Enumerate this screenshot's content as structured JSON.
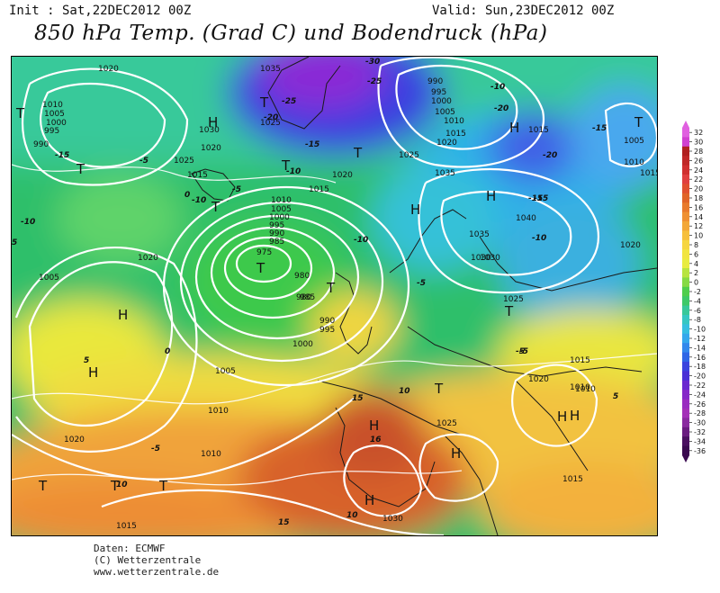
{
  "header": {
    "init": "Init : Sat,22DEC2012 00Z",
    "valid": "Valid: Sun,23DEC2012 00Z",
    "title": "850 hPa Temp. (Grad C) und Bodendruck (hPa)"
  },
  "footer": {
    "line1": "Daten: ECMWF",
    "line2": "(C) Wetterzentrale",
    "line3": "www.wetterzentrale.de"
  },
  "legend": {
    "ticks": [
      "32",
      "30",
      "28",
      "26",
      "24",
      "22",
      "20",
      "18",
      "16",
      "14",
      "12",
      "10",
      "8",
      "6",
      "4",
      "2",
      "0",
      "-2",
      "-4",
      "-6",
      "-8",
      "-10",
      "-12",
      "-14",
      "-16",
      "-18",
      "-20",
      "-22",
      "-24",
      "-26",
      "-28",
      "-30",
      "-32",
      "-34",
      "-36"
    ]
  },
  "pressure_centers": [
    {
      "type": "H",
      "label": "H"
    },
    {
      "type": "H",
      "label": "H"
    },
    {
      "type": "H",
      "label": "H"
    },
    {
      "type": "H",
      "label": "H"
    },
    {
      "type": "H",
      "label": "H"
    },
    {
      "type": "H",
      "label": "H"
    },
    {
      "type": "H",
      "label": "H"
    },
    {
      "type": "H",
      "label": "H"
    },
    {
      "type": "H",
      "label": "H"
    },
    {
      "type": "H",
      "label": "H"
    },
    {
      "type": "H",
      "label": "H"
    },
    {
      "type": "T",
      "label": "T"
    },
    {
      "type": "T",
      "label": "T"
    },
    {
      "type": "T",
      "label": "T"
    },
    {
      "type": "T",
      "label": "T"
    },
    {
      "type": "T",
      "label": "T"
    },
    {
      "type": "T",
      "label": "T"
    },
    {
      "type": "T",
      "label": "T"
    },
    {
      "type": "T",
      "label": "T"
    },
    {
      "type": "T",
      "label": "T"
    },
    {
      "type": "T",
      "label": "T"
    },
    {
      "type": "T",
      "label": "T"
    },
    {
      "type": "T",
      "label": "T"
    },
    {
      "type": "T",
      "label": "T"
    },
    {
      "type": "T",
      "label": "T"
    }
  ],
  "isobar_labels": [
    "1020",
    "1010",
    "1005",
    "1000",
    "995",
    "990",
    "1025",
    "1020",
    "1015",
    "1035",
    "1030",
    "1025",
    "1020",
    "1010",
    "1005",
    "1000",
    "995",
    "990",
    "985",
    "980",
    "975",
    "980",
    "985",
    "990",
    "995",
    "1000",
    "1005",
    "1010",
    "1020",
    "1005",
    "1010",
    "1015",
    "1020",
    "1025",
    "1030",
    "1035",
    "1040",
    "1035",
    "1030",
    "1025",
    "1020",
    "1015",
    "1010",
    "1005",
    "1010",
    "1020",
    "1015",
    "1010",
    "1015",
    "1025",
    "1015",
    "990",
    "995",
    "1000",
    "1005",
    "1010",
    "1015",
    "1030",
    "1020",
    "1015"
  ],
  "temp_labels": [
    "-15",
    "-10",
    "-5",
    "0",
    "5",
    "-5",
    "-10",
    "-15",
    "-20",
    "-25",
    "-30",
    "-25",
    "-20",
    "-15",
    "-10",
    "-5",
    "0",
    "5",
    "10",
    "15",
    "16",
    "15",
    "10",
    "-5",
    "-10",
    "-15",
    "-20",
    "-15",
    "-10",
    "-5",
    "-10",
    "-5",
    "5",
    "10"
  ]
}
